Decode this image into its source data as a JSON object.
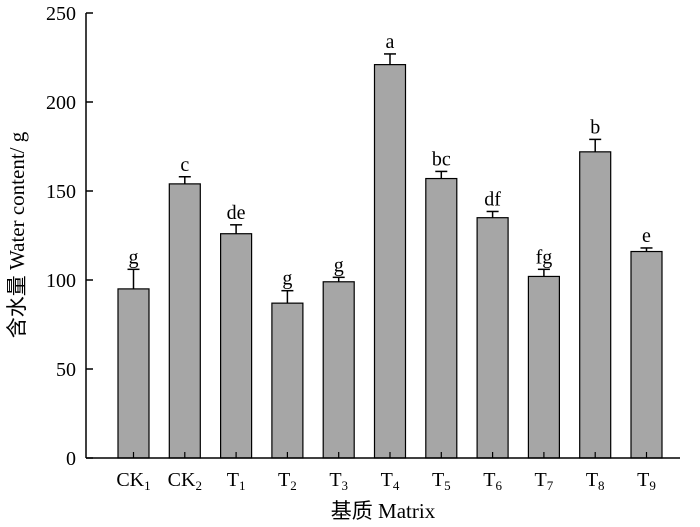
{
  "chart_data": {
    "type": "bar",
    "xlabel": "基质 Matrix",
    "ylabel": "含水量 Water content/ g",
    "ylim": [
      0,
      250
    ],
    "yticks": [
      "0",
      "50",
      "100",
      "150",
      "200",
      "250"
    ],
    "categories": [
      {
        "main": "CK",
        "sub": "1"
      },
      {
        "main": "CK",
        "sub": "2"
      },
      {
        "main": "T",
        "sub": "1"
      },
      {
        "main": "T",
        "sub": "2"
      },
      {
        "main": "T",
        "sub": "3"
      },
      {
        "main": "T",
        "sub": "4"
      },
      {
        "main": "T",
        "sub": "5"
      },
      {
        "main": "T",
        "sub": "6"
      },
      {
        "main": "T",
        "sub": "7"
      },
      {
        "main": "T",
        "sub": "8"
      },
      {
        "main": "T",
        "sub": "9"
      }
    ],
    "values": [
      95,
      154,
      126,
      87,
      99,
      221,
      157,
      135,
      102,
      172,
      116
    ],
    "errors": [
      11,
      4,
      5,
      7,
      2.5,
      6,
      4,
      3.5,
      4,
      7,
      2
    ],
    "significance": [
      "g",
      "c",
      "de",
      "g",
      "g",
      "a",
      "bc",
      "df",
      "fg",
      "b",
      "e"
    ],
    "bar_color": "#a6a6a6",
    "grid": false
  }
}
